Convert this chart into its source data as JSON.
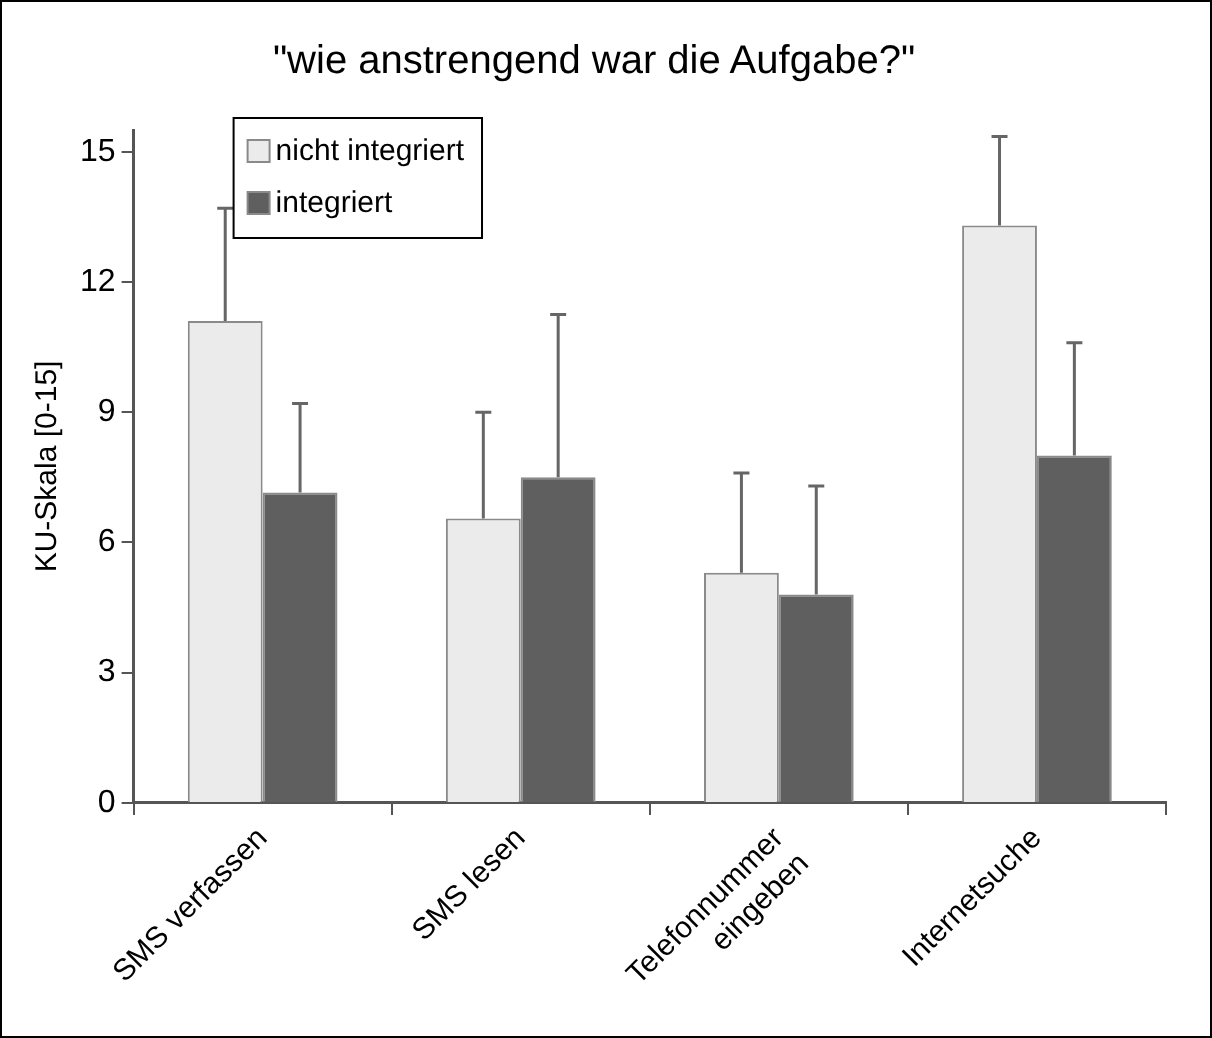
{
  "chart_data": {
    "type": "bar",
    "title": "\"wie anstrengend war die Aufgabe?\"",
    "ylabel": "KU-Skala [0-15]",
    "categories": [
      "SMS verfassen",
      "SMS lesen",
      "Telefonnummer eingeben",
      "Internetsuche"
    ],
    "series": [
      {
        "name": "nicht integriert",
        "color": "#ebebeb",
        "values": [
          11.1,
          6.55,
          5.3,
          13.3
        ],
        "errors": [
          [
            11.1,
            13.7
          ],
          [
            6.55,
            9.0
          ],
          [
            5.3,
            7.6
          ],
          [
            13.3,
            15.35
          ]
        ]
      },
      {
        "name": "integriert",
        "color": "#5f5f5f",
        "values": [
          7.15,
          7.5,
          4.8,
          8.0
        ],
        "errors": [
          [
            7.15,
            9.2
          ],
          [
            7.5,
            11.25
          ],
          [
            4.8,
            7.3
          ],
          [
            8.0,
            10.6
          ]
        ]
      }
    ],
    "ylim": [
      0,
      15.5
    ],
    "yticks": [
      0,
      3,
      6,
      9,
      12,
      15
    ],
    "grid": false,
    "legend": "top left"
  }
}
